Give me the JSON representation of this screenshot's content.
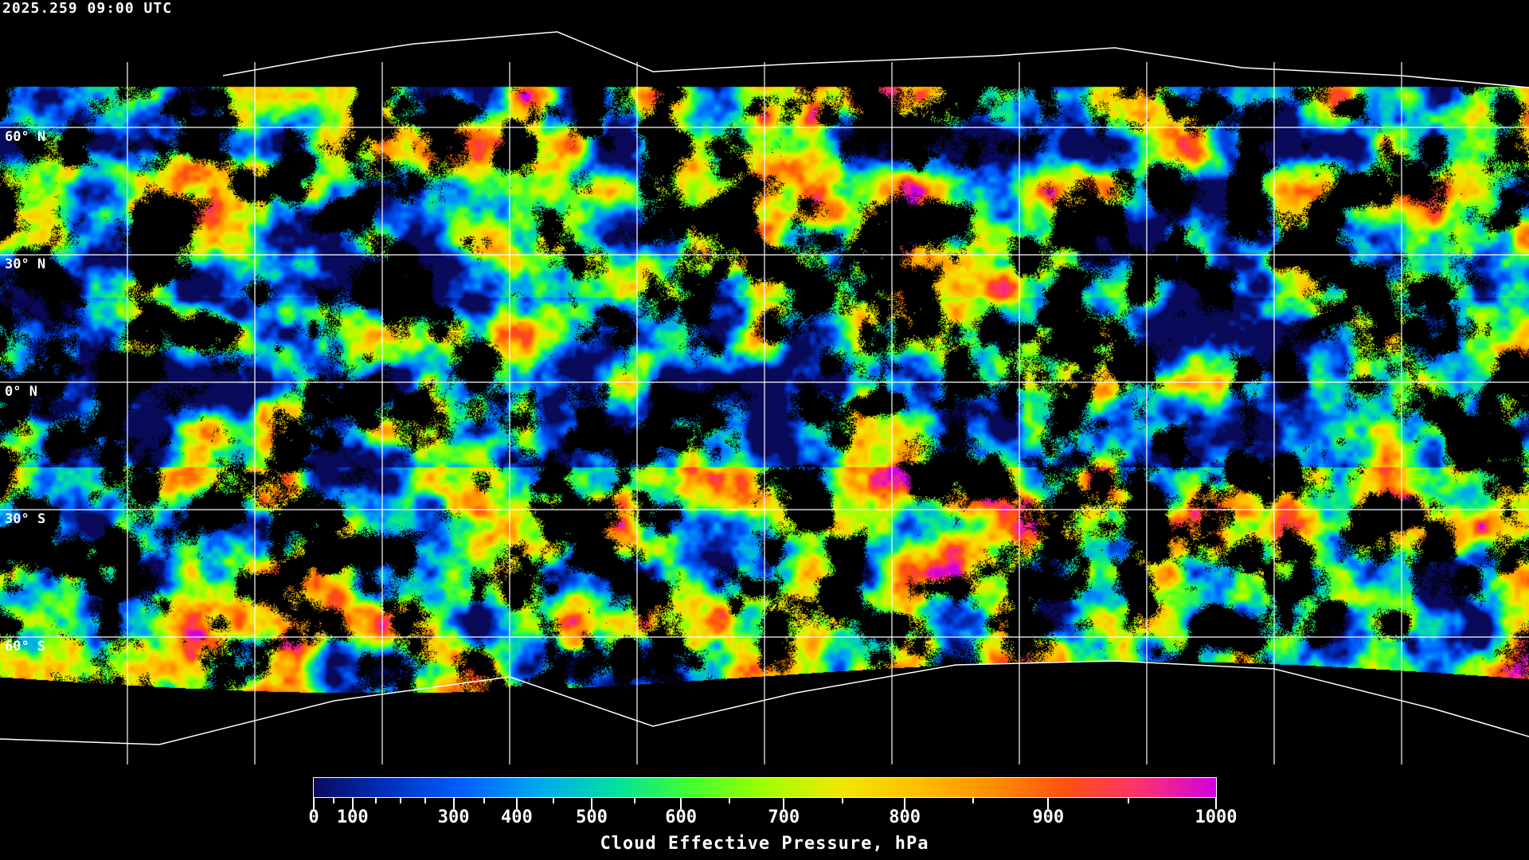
{
  "timestamp": "2025.259 09:00 UTC",
  "latitude_labels": [
    "60° N",
    "30° N",
    "0° N",
    "30° S",
    "60° S"
  ],
  "colorbar": {
    "title": "Cloud Effective Pressure, hPa",
    "range": [
      0,
      1000
    ],
    "major_ticks": [
      "0",
      "100",
      "300",
      "400",
      "500",
      "600",
      "700",
      "800",
      "900",
      "1000"
    ],
    "minor_ticks": [
      50,
      150,
      200,
      250,
      350,
      450,
      550,
      650,
      750,
      850,
      950
    ],
    "colormap": [
      "#0a0a5a",
      "#0030c0",
      "#0060ff",
      "#00a8f0",
      "#00e0a0",
      "#40ff30",
      "#a0ff00",
      "#f0e800",
      "#ffc000",
      "#ff9000",
      "#ff5010",
      "#ff3070",
      "#d000e0"
    ]
  },
  "map": {
    "projection": "equirectangular",
    "gridline_spacing_deg": 30,
    "gridline_color": "#ffffff",
    "coastline_color": "#ffffff",
    "no_data_color": "#000000"
  }
}
